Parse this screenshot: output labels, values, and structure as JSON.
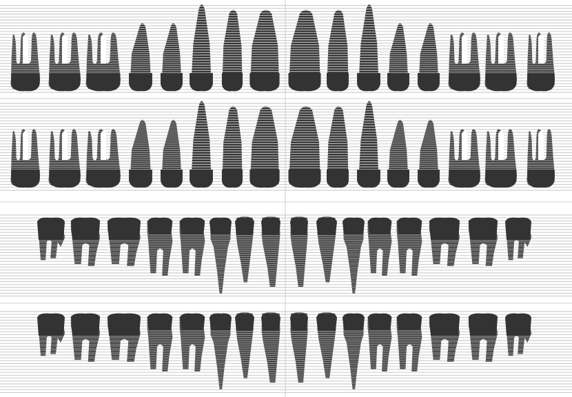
{
  "colors": {
    "tooth": "#333333",
    "lines": "#c2c2c2",
    "divider": "#d2d2d2",
    "background": "#ffffff"
  },
  "rows": [
    {
      "id": "upper-buccal",
      "jaw": "upper",
      "teeth": [
        "molar3",
        "molar2",
        "molar1",
        "premolar2",
        "premolar1",
        "canine",
        "incisor2",
        "incisor1",
        "incisor1",
        "incisor2",
        "canine",
        "premolar1",
        "premolar2",
        "molar1",
        "molar2",
        "molar3"
      ]
    },
    {
      "id": "upper-lingual",
      "jaw": "upper",
      "teeth": [
        "molar3",
        "molar2",
        "molar1",
        "premolar2",
        "premolar1",
        "canine",
        "incisor2",
        "incisor1",
        "incisor1",
        "incisor2",
        "canine",
        "premolar1",
        "premolar2",
        "molar1",
        "molar2",
        "molar3"
      ]
    },
    {
      "id": "lower-buccal",
      "jaw": "lower",
      "teeth": [
        "molar3",
        "molar2",
        "molar1",
        "premolar2",
        "premolar1",
        "canine",
        "incisor2",
        "incisor1",
        "incisor1",
        "incisor2",
        "canine",
        "premolar1",
        "premolar2",
        "molar1",
        "molar2",
        "molar3"
      ]
    },
    {
      "id": "lower-lingual",
      "jaw": "lower",
      "teeth": [
        "molar3",
        "molar2",
        "molar1",
        "premolar2",
        "premolar1",
        "canine",
        "incisor2",
        "incisor1",
        "incisor1",
        "incisor2",
        "canine",
        "premolar1",
        "premolar2",
        "molar1",
        "molar2",
        "molar3"
      ]
    }
  ]
}
